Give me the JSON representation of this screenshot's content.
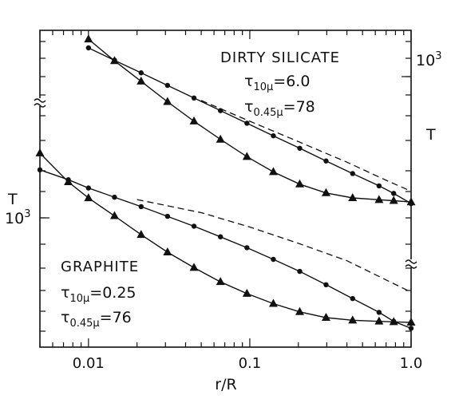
{
  "chart_data": {
    "type": "line",
    "xlabel": "r/R",
    "ylabel_left": "T",
    "ylabel_right": "T",
    "x_scale": "log",
    "xlim": [
      0.005,
      1.0
    ],
    "x_ticks": [
      {
        "value": 0.01,
        "label": "0.01"
      },
      {
        "value": 0.1,
        "label": "0.1"
      },
      {
        "value": 1.0,
        "label": "1.0"
      }
    ],
    "y_scale": "log",
    "grid": false,
    "panels": [
      {
        "name": "DIRTY SILICATE",
        "axis_label": "10",
        "axis_label_exp": "3",
        "axis_side": "right",
        "tau1": {
          "symbol": "τ",
          "sub": "10μ",
          "eq": "=",
          "value": "6.0"
        },
        "tau2": {
          "symbol": "τ",
          "sub": "0.45μ",
          "eq": "=",
          "value": "78"
        },
        "series": [
          {
            "marker": "circle",
            "x": [
              0.01,
              0.0145,
              0.0212,
              0.0309,
              0.0451,
              0.0658,
              0.096,
              0.14,
              0.204,
              0.297,
              0.434,
              0.633,
              0.78,
              1.0
            ],
            "y": [
              1000,
              952,
              906,
              862,
              820,
              780,
              742,
              706,
              672,
              639,
              608,
              579,
              562,
              540
            ]
          },
          {
            "marker": "triangle",
            "x": [
              0.01,
              0.0145,
              0.0212,
              0.0309,
              0.0451,
              0.0658,
              0.096,
              0.14,
              0.204,
              0.297,
              0.434,
              0.633,
              0.78,
              1.0
            ],
            "y": [
              1035,
              950,
              876,
              808,
              748,
              696,
              650,
              612,
              583,
              563,
              552,
              548,
              546,
              543
            ]
          },
          {
            "marker": "dashed",
            "x": [
              0.05,
              0.1,
              0.2,
              0.4,
              0.7,
              1.0
            ],
            "y": [
              812,
              748,
              690,
              636,
              592,
              567
            ]
          }
        ]
      },
      {
        "name": "GRAPHITE",
        "axis_label": "10",
        "axis_label_exp": "3",
        "axis_side": "left",
        "tau1": {
          "symbol": "τ",
          "sub": "10μ",
          "eq": "=",
          "value": "0.25"
        },
        "tau2": {
          "symbol": "τ",
          "sub": "0.45μ",
          "eq": "=",
          "value": "76"
        },
        "series": [
          {
            "marker": "circle",
            "x": [
              0.005,
              0.0075,
              0.01,
              0.0145,
              0.0212,
              0.0309,
              0.0451,
              0.0658,
              0.096,
              0.14,
              0.204,
              0.297,
              0.434,
              0.633,
              0.78,
              1.0
            ],
            "y": [
              1085,
              1058,
              1036,
              1012,
              988,
              964,
              940,
              915,
              890,
              864,
              838,
              810,
              782,
              755,
              738,
              725
            ]
          },
          {
            "marker": "triangle",
            "x": [
              0.005,
              0.0075,
              0.01,
              0.0145,
              0.0212,
              0.0309,
              0.0451,
              0.0658,
              0.096,
              0.14,
              0.204,
              0.297,
              0.434,
              0.633,
              0.78,
              1.0
            ],
            "y": [
              1132,
              1052,
              1010,
              965,
              920,
              880,
              846,
              816,
              792,
              772,
              756,
              745,
              740,
              738,
              737,
              736
            ]
          },
          {
            "marker": "dashed",
            "x": [
              0.02,
              0.05,
              0.1,
              0.2,
              0.4,
              0.7,
              1.0
            ],
            "y": [
              1006,
              973,
              938,
              900,
              861,
              820,
              795
            ]
          }
        ]
      }
    ]
  }
}
